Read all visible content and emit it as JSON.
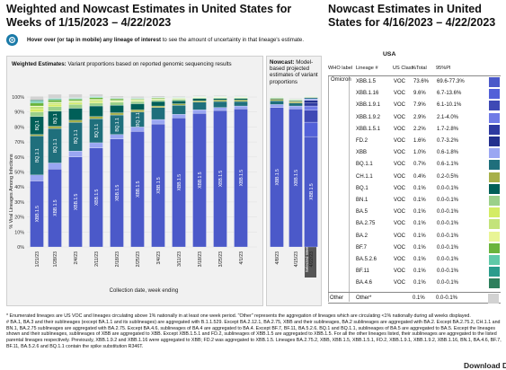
{
  "header": {
    "title": "Weighted and Nowcast Estimates in United States for Weeks of 1/15/2023 – 4/22/2023",
    "side_title": "Nowcast Estimates in United States for 4/16/2023 – 4/22/2023"
  },
  "hover": {
    "icon": "touch-icon",
    "bold": "Hover over (or tap in mobile) any lineage of interest",
    "rest": " to see the amount of uncertainty in that lineage's estimate."
  },
  "weighted_panel": {
    "heading_bold": "Weighted Estimates:",
    "heading_rest": " Variant proportions based on reported genomic sequencing results"
  },
  "nowcast_panel": {
    "heading_bold": "Nowcast:",
    "heading_rest": " Model-based projected estimates of variant proportions",
    "selected_badge": "Selected Week"
  },
  "colors": {
    "XBB.1.5": "#4b59c9",
    "XBB.1.16": "#5260d8",
    "XBB.1.9.1": "#3f49b5",
    "XBB.1.9.2": "#6f7be6",
    "XBB.1.5.1": "#2e3aa0",
    "FD.2": "#23308e",
    "XBB": "#9aa6f2",
    "BQ.1.1": "#1f6f7c",
    "CH.1.1": "#a7b04a",
    "BQ.1": "#005f58",
    "BN.1": "#9bd08a",
    "BA.5": "#d4ec64",
    "BA.2.75": "#c3e37a",
    "BA.2": "#e9f596",
    "BF.7": "#6ab43c",
    "BA.5.2.6": "#5fc9a8",
    "BF.11": "#2a9c8c",
    "BA.4.6": "#2d7f5c",
    "Other": "#d2d2d2"
  },
  "chart_data": {
    "type": "bar",
    "stacked": true,
    "ylabel": "% Viral Lineages Among Infections",
    "xlabel": "Collection date, week ending",
    "ylim": [
      0,
      100
    ],
    "yticks": [
      "0%",
      "10%",
      "20%",
      "30%",
      "40%",
      "50%",
      "60%",
      "70%",
      "80%",
      "90%",
      "100%"
    ],
    "categories": [
      "1/21/23",
      "1/28/23",
      "2/4/23",
      "2/11/23",
      "2/18/23",
      "2/25/23",
      "3/4/23",
      "3/11/23",
      "3/18/23",
      "3/25/23",
      "4/1/23",
      "4/8/23",
      "4/15/23",
      "4/22/23"
    ],
    "nowcast_categories": [
      "4/8/23",
      "4/15/23",
      "4/22/23"
    ],
    "series": [
      {
        "name": "XBB.1.5",
        "values": [
          44,
          52,
          60,
          66,
          72,
          77,
          82,
          86,
          89,
          91,
          92,
          93,
          92,
          73.6
        ]
      },
      {
        "name": "XBB.1.16",
        "values": [
          0,
          0,
          0,
          0,
          0,
          0,
          0,
          0,
          0,
          0,
          0,
          0,
          0,
          9.6
        ]
      },
      {
        "name": "XBB.1.9.1",
        "values": [
          0,
          0,
          0,
          0,
          0,
          0,
          0,
          0,
          0,
          0,
          0,
          0,
          0,
          7.9
        ]
      },
      {
        "name": "XBB.1.9.2",
        "values": [
          0,
          0,
          0,
          0,
          0,
          0,
          0,
          0,
          0,
          0,
          0,
          0,
          0,
          2.9
        ]
      },
      {
        "name": "XBB.1.5.1",
        "values": [
          0,
          0,
          0,
          0,
          0,
          0,
          0,
          0,
          0,
          0,
          0,
          0,
          0,
          2.2
        ]
      },
      {
        "name": "FD.2",
        "values": [
          0,
          0,
          0,
          0,
          0,
          0,
          0,
          0,
          0,
          0,
          0,
          0,
          0,
          1.6
        ]
      },
      {
        "name": "XBB",
        "values": [
          4,
          4,
          4,
          3.5,
          3,
          3,
          3,
          2.5,
          2.5,
          2,
          2,
          2,
          2,
          1.0
        ]
      },
      {
        "name": "BQ.1.1",
        "values": [
          26,
          23,
          19,
          16,
          13,
          10,
          8,
          6,
          5,
          4,
          3,
          2.5,
          2,
          0.7
        ]
      },
      {
        "name": "CH.1.1",
        "values": [
          1,
          1.5,
          1.5,
          1.5,
          1.5,
          1.5,
          1,
          1,
          1,
          1,
          1,
          1,
          1,
          0.4
        ]
      },
      {
        "name": "BQ.1",
        "values": [
          12,
          10,
          8,
          7,
          5,
          4,
          3,
          2,
          1.5,
          1,
          1,
          0.5,
          0.5,
          0.1
        ]
      },
      {
        "name": "BN.1",
        "values": [
          3,
          3,
          2.5,
          2,
          2,
          1.5,
          1,
          1,
          0.5,
          0.5,
          0.5,
          0.5,
          0.5,
          0.1
        ]
      },
      {
        "name": "BA.5",
        "values": [
          2,
          1.5,
          1,
          1,
          0.5,
          0.5,
          0.5,
          0.3,
          0.2,
          0.2,
          0.2,
          0.1,
          0.1,
          0.1
        ]
      },
      {
        "name": "BA.2.75",
        "values": [
          1.5,
          1,
          1,
          1,
          0.5,
          0.5,
          0.3,
          0.2,
          0.2,
          0.2,
          0.2,
          0.1,
          0.1,
          0.1
        ]
      },
      {
        "name": "BA.2",
        "values": [
          0.5,
          0.5,
          0.5,
          0.5,
          0.3,
          0.3,
          0.2,
          0.2,
          0.1,
          0.1,
          0.1,
          0.1,
          0.1,
          0.1
        ]
      },
      {
        "name": "BF.7",
        "values": [
          2,
          1.5,
          1,
          1,
          1,
          0.5,
          0.5,
          0.3,
          0.2,
          0.2,
          0.1,
          0.1,
          0.1,
          0.1
        ]
      },
      {
        "name": "BA.5.2.6",
        "values": [
          1,
          0.5,
          0.5,
          0.5,
          0.3,
          0.3,
          0.2,
          0.2,
          0.1,
          0.1,
          0.1,
          0.1,
          0.1,
          0.1
        ]
      },
      {
        "name": "BF.11",
        "values": [
          0.5,
          0.5,
          0.3,
          0.3,
          0.2,
          0.2,
          0.1,
          0.1,
          0.1,
          0.1,
          0.1,
          0.1,
          0.1,
          0.1
        ]
      },
      {
        "name": "BA.4.6",
        "values": [
          0.5,
          0.3,
          0.3,
          0.2,
          0.2,
          0.1,
          0.1,
          0.1,
          0.1,
          0.1,
          0.1,
          0.1,
          0.1,
          0.1
        ]
      },
      {
        "name": "Other",
        "values": [
          2.5,
          2.5,
          2.4,
          1.5,
          1.2,
          1.1,
          0.8,
          0.6,
          0.5,
          0.5,
          0.5,
          0.3,
          0.4,
          0.1
        ]
      }
    ],
    "bar_labels": [
      {
        "bar": 0,
        "series": "XBB.1.5",
        "text": "XBB.1.5"
      },
      {
        "bar": 0,
        "series": "BQ.1.1",
        "text": "BQ.1.1"
      },
      {
        "bar": 0,
        "series": "BQ.1",
        "text": "BQ.1"
      },
      {
        "bar": 1,
        "series": "XBB.1.5",
        "text": "XBB.1.5"
      },
      {
        "bar": 1,
        "series": "BQ.1.1",
        "text": "BQ.1.1"
      },
      {
        "bar": 1,
        "series": "BQ.1",
        "text": "BQ.1"
      },
      {
        "bar": 2,
        "series": "XBB.1.5",
        "text": "XBB.1.5"
      },
      {
        "bar": 2,
        "series": "BQ.1.1",
        "text": "BQ.1.1"
      },
      {
        "bar": 3,
        "series": "XBB.1.5",
        "text": "XBB.1.5"
      },
      {
        "bar": 3,
        "series": "BQ.1.1",
        "text": "BQ.1.1"
      },
      {
        "bar": 4,
        "series": "XBB.1.5",
        "text": "XBB.1.5"
      },
      {
        "bar": 4,
        "series": "BQ.1.1",
        "text": "BQ.1.1"
      },
      {
        "bar": 5,
        "series": "XBB.1.5",
        "text": "XBB.1.5"
      },
      {
        "bar": 5,
        "series": "BQ.1.1",
        "text": "BQ.1.1"
      },
      {
        "bar": 6,
        "series": "XBB.1.5",
        "text": "XBB.1.5"
      },
      {
        "bar": 7,
        "series": "XBB.1.5",
        "text": "XBB.1.5"
      },
      {
        "bar": 8,
        "series": "XBB.1.5",
        "text": "XBB.1.5"
      },
      {
        "bar": 9,
        "series": "XBB.1.5",
        "text": "XBB.1.5"
      },
      {
        "bar": 10,
        "series": "XBB.1.5",
        "text": "XBB.1.5"
      },
      {
        "bar": 11,
        "series": "XBB.1.5",
        "text": "XBB.1.5"
      },
      {
        "bar": 12,
        "series": "XBB.1.5",
        "text": "XBB.1.5"
      },
      {
        "bar": 13,
        "series": "XBB.1.5",
        "text": "XBB.1.5"
      }
    ]
  },
  "table": {
    "region": "USA",
    "headers": {
      "who": "WHO label",
      "lineage": "Lineage #",
      "class": "US Class",
      "total": "%Total",
      "pi": "95%PI"
    },
    "group_label": "Omicron",
    "rows": [
      {
        "lineage": "XBB.1.5",
        "class": "VOC",
        "total": "73.6%",
        "pi": "69.6-77.3%"
      },
      {
        "lineage": "XBB.1.16",
        "class": "VOC",
        "total": "9.6%",
        "pi": "6.7-13.6%"
      },
      {
        "lineage": "XBB.1.9.1",
        "class": "VOC",
        "total": "7.9%",
        "pi": "6.1-10.1%"
      },
      {
        "lineage": "XBB.1.9.2",
        "class": "VOC",
        "total": "2.9%",
        "pi": "2.1-4.0%"
      },
      {
        "lineage": "XBB.1.5.1",
        "class": "VOC",
        "total": "2.2%",
        "pi": "1.7-2.8%"
      },
      {
        "lineage": "FD.2",
        "class": "VOC",
        "total": "1.6%",
        "pi": "0.7-3.2%"
      },
      {
        "lineage": "XBB",
        "class": "VOC",
        "total": "1.0%",
        "pi": "0.6-1.8%"
      },
      {
        "lineage": "BQ.1.1",
        "class": "VOC",
        "total": "0.7%",
        "pi": "0.6-1.1%"
      },
      {
        "lineage": "CH.1.1",
        "class": "VOC",
        "total": "0.4%",
        "pi": "0.2-0.5%"
      },
      {
        "lineage": "BQ.1",
        "class": "VOC",
        "total": "0.1%",
        "pi": "0.0-0.1%"
      },
      {
        "lineage": "BN.1",
        "class": "VOC",
        "total": "0.1%",
        "pi": "0.0-0.1%"
      },
      {
        "lineage": "BA.5",
        "class": "VOC",
        "total": "0.1%",
        "pi": "0.0-0.1%"
      },
      {
        "lineage": "BA.2.75",
        "class": "VOC",
        "total": "0.1%",
        "pi": "0.0-0.1%"
      },
      {
        "lineage": "BA.2",
        "class": "VOC",
        "total": "0.1%",
        "pi": "0.0-0.1%"
      },
      {
        "lineage": "BF.7",
        "class": "VOC",
        "total": "0.1%",
        "pi": "0.0-0.1%"
      },
      {
        "lineage": "BA.5.2.6",
        "class": "VOC",
        "total": "0.1%",
        "pi": "0.0-0.1%"
      },
      {
        "lineage": "BF.11",
        "class": "VOC",
        "total": "0.1%",
        "pi": "0.0-0.1%"
      },
      {
        "lineage": "BA.4.6",
        "class": "VOC",
        "total": "0.1%",
        "pi": "0.0-0.1%"
      }
    ],
    "other": {
      "label": "Other",
      "lineage": "Other*",
      "class": "",
      "total": "0.1%",
      "pi": "0.0-0.1%"
    }
  },
  "footnotes": {
    "star": "*    Enumerated lineages are US VOC and lineages circulating above 1% nationally in at least one week period. \"Other\" represents the aggregation of lineages which are circulating <1% nationally during all weeks displayed.",
    "hash": "#   BA.1, BA.3 and their sublineages (except BA.1.1 and its sublineages) are aggregated with B.1.1.529. Except BA.2.12.1, BA.2.75, XBB and their sublineages, BA.2 sublineages are aggregated with BA.2. Except BA.2.75.2, CH.1.1 and BN.1, BA.2.75 sublineages are aggregated with BA.2.75. Except BA.4.6, sublineages of BA.4 are aggregated to BA.4. Except BF.7, BF.11, BA.5.2.6, BQ.1 and BQ.1.1, sublineages of BA.5 are aggregated to BA.5. Except the lineages shown and their sublineages, sublineages of XBB are aggregated to XBB. Except XBB.1.5.1 and FD.2, sublineages of XBB.1.5 are aggregated to XBB.1.5. For all the other lineages listed, their sublineages are aggregated to the listed parental lineages respectively. Previously, XBB.1.9.2 and XBB.1.16 were aggregated to XBB; FD.2 was aggregated to XBB.1.5. Lineages BA.2.75.2, XBB, XBB.1.5, XBB.1.5.1, FD.2, XBB.1.9.1, XBB.1.9.2, XBB.1.16, BN.1, BA.4.6, BF.7, BF.11, BA.5.2.6 and BQ.1.1 contain the spike substitution R346T."
  },
  "cutoff_text": "Download Data"
}
